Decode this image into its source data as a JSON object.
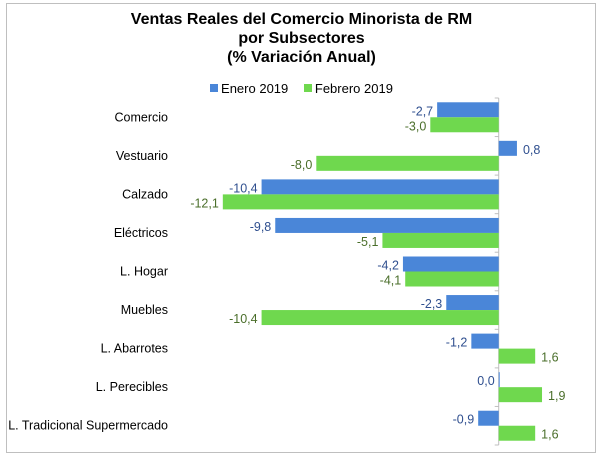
{
  "chart_data": {
    "type": "bar",
    "orientation": "horizontal",
    "title": "Ventas Reales del Comercio Minorista de RM",
    "subtitle_lines": [
      "por Subsectores",
      "(% Variación Anual)"
    ],
    "xlabel": "",
    "ylabel": "",
    "categories": [
      "Comercio",
      "Vestuario",
      "Calzado",
      "Eléctricos",
      "L. Hogar",
      "Muebles",
      "L. Abarrotes",
      "L. Perecibles",
      "L. Tradicional Supermercado"
    ],
    "series": [
      {
        "name": "Enero 2019",
        "color": "#4a86d8",
        "label_color": "#2f4f8f",
        "values": [
          -2.7,
          0.8,
          -10.4,
          -9.8,
          -4.2,
          -2.3,
          -1.2,
          0.0,
          -0.9
        ],
        "labels": [
          "-2,7",
          "0,8",
          "-10,4",
          "-9,8",
          "-4,2",
          "-2,3",
          "-1,2",
          "0,0",
          "-0,9"
        ]
      },
      {
        "name": "Febrero 2019",
        "color": "#6fd84e",
        "label_color": "#4a6e2a",
        "values": [
          -3.0,
          -8.0,
          -12.1,
          -5.1,
          -4.1,
          -10.4,
          1.6,
          1.9,
          1.6
        ],
        "labels": [
          "-3,0",
          "-8,0",
          "-12,1",
          "-5,1",
          "-4,1",
          "-10,4",
          "1,6",
          "1,9",
          "1,6"
        ]
      }
    ],
    "xlim": [
      -12.6,
      3.5
    ],
    "legend_position": "top-center",
    "grid": false
  }
}
